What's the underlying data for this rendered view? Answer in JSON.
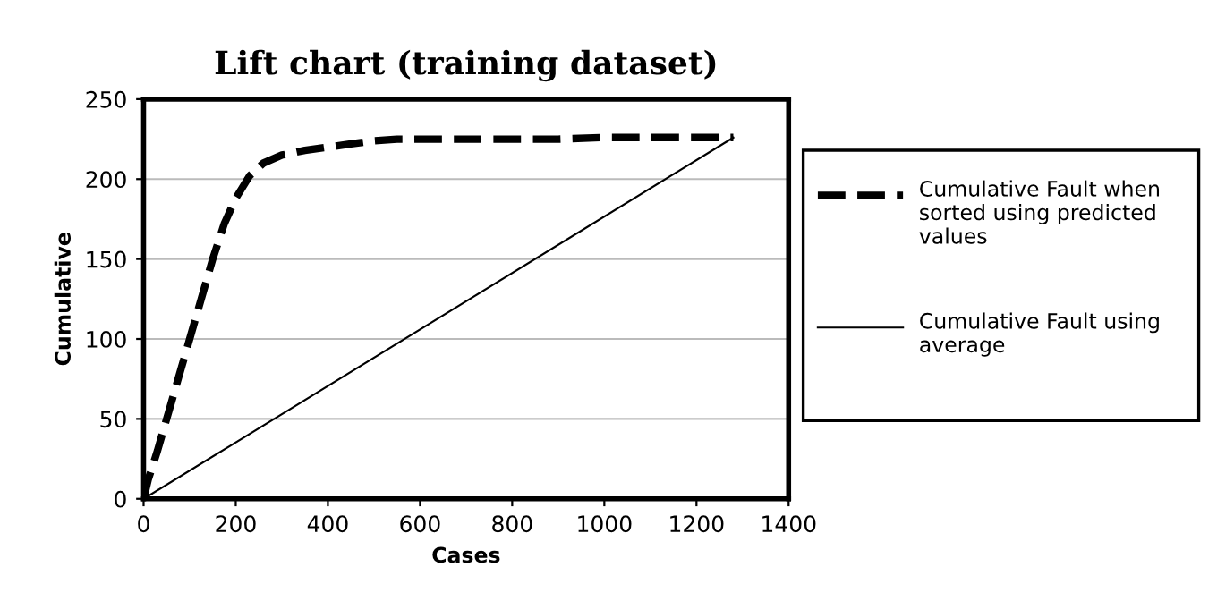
{
  "chart_data": {
    "type": "line",
    "title": "Lift chart (training dataset)",
    "xlabel": "Cases",
    "ylabel": "Cumulative",
    "series": [
      {
        "name": "Cumulative Fault when sorted using predicted values",
        "color": "#000000",
        "line_style": "dashed",
        "x": [
          0,
          10,
          30,
          50,
          75,
          100,
          125,
          150,
          175,
          200,
          230,
          260,
          300,
          350,
          400,
          450,
          500,
          550,
          700,
          800,
          900,
          1000,
          1100,
          1280
        ],
        "values": [
          0,
          12,
          30,
          50,
          75,
          100,
          125,
          150,
          172,
          188,
          202,
          210,
          215,
          218,
          220,
          222,
          224,
          225,
          225,
          225,
          225,
          226,
          226,
          226
        ]
      },
      {
        "name": "Cumulative Fault using average",
        "color": "#000000",
        "line_style": "solid",
        "x": [
          0,
          1280
        ],
        "values": [
          0,
          226
        ]
      }
    ],
    "xlim": [
      0,
      1400
    ],
    "xticks": [
      0,
      200,
      400,
      600,
      800,
      1000,
      1200,
      1400
    ],
    "ylim": [
      0,
      250
    ],
    "yticks": [
      0,
      50,
      100,
      150,
      200,
      250
    ],
    "grid": "y",
    "legend": "right"
  }
}
